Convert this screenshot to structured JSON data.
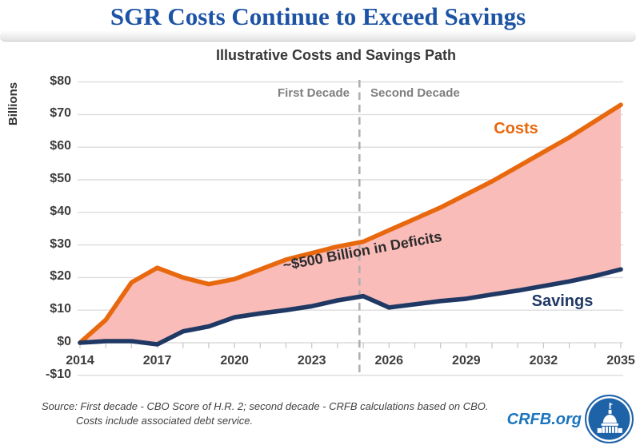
{
  "page": {
    "title": "SGR Costs Continue to Exceed Savings",
    "title_color": "#1c53a4"
  },
  "chart_data": {
    "type": "area",
    "title": "Illustrative Costs and Savings Path",
    "ylabel": "Billions",
    "ylim": [
      -10,
      80
    ],
    "grid": true,
    "legend": "inline-labels",
    "x": [
      2014,
      2015,
      2016,
      2017,
      2018,
      2019,
      2020,
      2021,
      2022,
      2023,
      2024,
      2025,
      2026,
      2027,
      2028,
      2029,
      2030,
      2031,
      2032,
      2033,
      2034,
      2035
    ],
    "series": [
      {
        "name": "Costs",
        "color": "#e8680e",
        "values": [
          0,
          7,
          18.5,
          23,
          20,
          18,
          19.5,
          22.5,
          25.5,
          27.5,
          29.5,
          31,
          34.5,
          38,
          41.5,
          45.5,
          49.5,
          54,
          58.5,
          63,
          68,
          73
        ]
      },
      {
        "name": "Savings",
        "color": "#1f3864",
        "values": [
          0,
          0.5,
          0.5,
          -0.5,
          3.5,
          5,
          7.8,
          9,
          10,
          11.2,
          13,
          14.3,
          10.8,
          11.8,
          12.8,
          13.5,
          14.8,
          16,
          17.4,
          18.8,
          20.5,
          22.5
        ]
      }
    ],
    "fill_between_color": "#f9bcb8",
    "fill_label": "~$500 Billion in Deficits",
    "y_ticks": [
      {
        "label": "$80",
        "value": 80
      },
      {
        "label": "$70",
        "value": 70
      },
      {
        "label": "$60",
        "value": 60
      },
      {
        "label": "$50",
        "value": 50
      },
      {
        "label": "$40",
        "value": 40
      },
      {
        "label": "$30",
        "value": 30
      },
      {
        "label": "$20",
        "value": 20
      },
      {
        "label": "$10",
        "value": 10
      },
      {
        "label": "$0",
        "value": 0
      },
      {
        "label": "-$10",
        "value": -10
      }
    ],
    "x_ticks": [
      {
        "label": "2014",
        "year": 2014
      },
      {
        "label": "2017",
        "year": 2017
      },
      {
        "label": "2020",
        "year": 2020
      },
      {
        "label": "2023",
        "year": 2023
      },
      {
        "label": "2026",
        "year": 2026
      },
      {
        "label": "2029",
        "year": 2029
      },
      {
        "label": "2032",
        "year": 2032
      },
      {
        "label": "2035",
        "year": 2035
      }
    ],
    "divider": {
      "x_year": 2024.85,
      "left_label": "First Decade",
      "right_label": "Second Decade",
      "color": "#b0b0b0"
    },
    "grid_color": "#dcdcdc"
  },
  "footer": {
    "source_line1": "Source: First decade - CBO Score of H.R. 2; second decade - CRFB calculations based on CBO.",
    "source_line2": "Costs include associated debt service.",
    "brand": "CRFB.org",
    "brand_color": "#1b74be",
    "logo_icon": "capitol-icon"
  }
}
